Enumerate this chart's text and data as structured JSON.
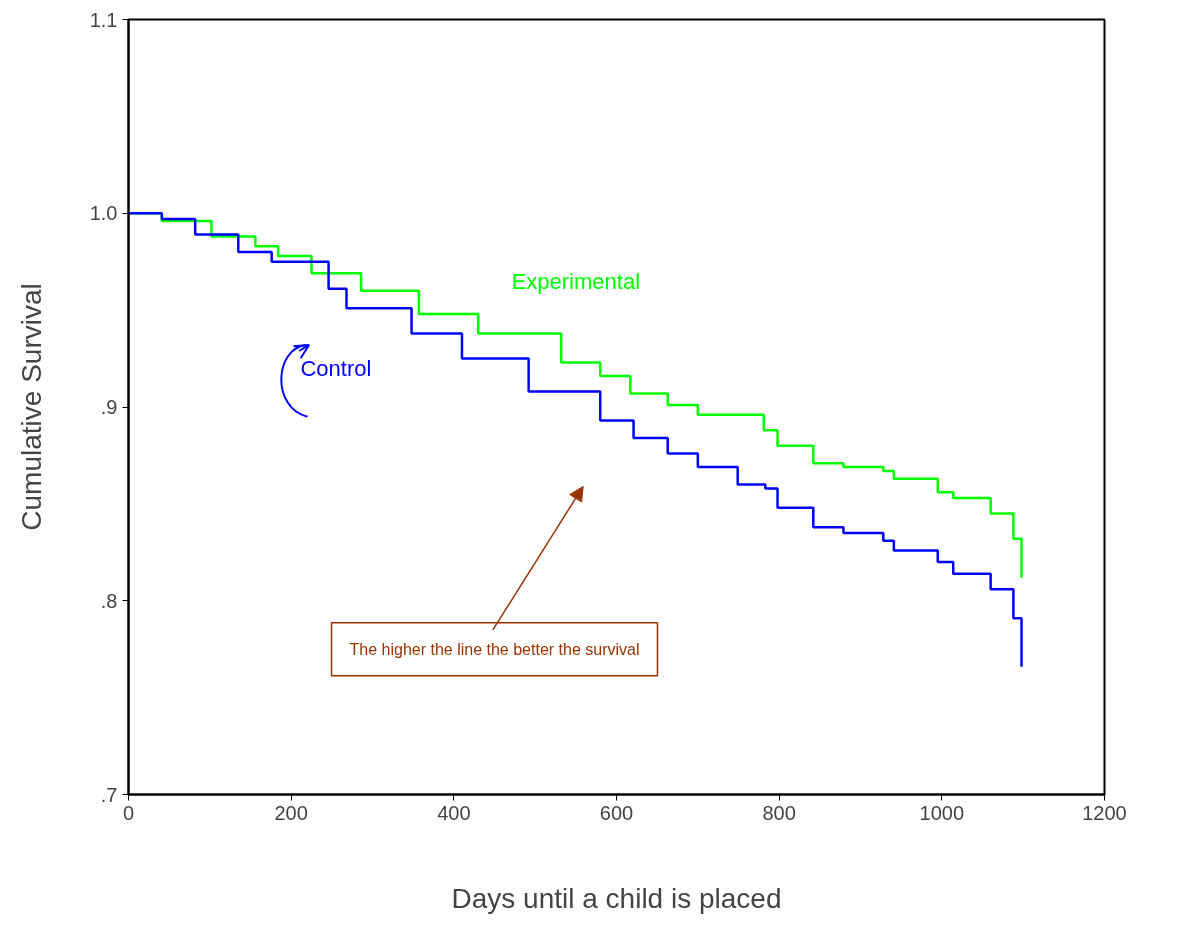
{
  "chart_data": {
    "type": "step",
    "xlabel": "Days until a child is placed",
    "ylabel": "Cumulative Survival",
    "xlim": [
      0,
      1200
    ],
    "xticks": [
      0,
      200,
      400,
      600,
      800,
      1000,
      1200
    ],
    "ylim": [
      0.7,
      1.1
    ],
    "yticks": [
      {
        "value": 0.7,
        "label": ".7"
      },
      {
        "value": 0.8,
        "label": ".8"
      },
      {
        "value": 0.9,
        "label": ".9"
      },
      {
        "value": 1.0,
        "label": "1.0"
      },
      1.1
    ],
    "grid": false,
    "series": [
      {
        "name": "Experimental",
        "color": "#00ff00",
        "x": [
          0,
          41,
          102,
          156,
          184,
          225,
          286,
          357,
          430,
          532,
          580,
          617,
          663,
          700,
          781,
          798,
          842,
          879,
          928,
          941,
          995,
          1014,
          1060,
          1088,
          1098
        ],
        "values": [
          1.0,
          0.996,
          0.988,
          0.983,
          0.978,
          0.969,
          0.96,
          0.948,
          0.938,
          0.923,
          0.916,
          0.907,
          0.901,
          0.896,
          0.888,
          0.88,
          0.871,
          0.869,
          0.867,
          0.863,
          0.856,
          0.853,
          0.845,
          0.832,
          0.812
        ]
      },
      {
        "name": "Control",
        "color": "#0000ff",
        "x": [
          0,
          41,
          82,
          135,
          176,
          246,
          268,
          348,
          410,
          492,
          580,
          621,
          663,
          700,
          749,
          783,
          798,
          842,
          879,
          928,
          941,
          995,
          1014,
          1060,
          1088,
          1098
        ],
        "values": [
          1.0,
          0.997,
          0.989,
          0.98,
          0.975,
          0.961,
          0.951,
          0.938,
          0.925,
          0.908,
          0.893,
          0.884,
          0.876,
          0.869,
          0.86,
          0.858,
          0.848,
          0.838,
          0.835,
          0.831,
          0.826,
          0.82,
          0.814,
          0.806,
          0.791,
          0.766
        ]
      }
    ],
    "annotations": [
      "The higher the line the better the survival"
    ]
  }
}
